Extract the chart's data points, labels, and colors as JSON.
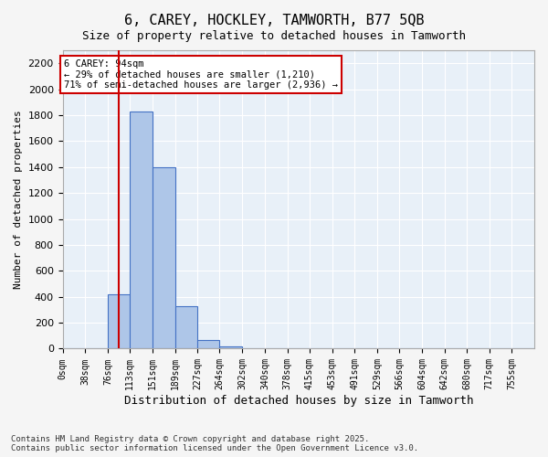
{
  "title": "6, CAREY, HOCKLEY, TAMWORTH, B77 5QB",
  "subtitle": "Size of property relative to detached houses in Tamworth",
  "xlabel": "Distribution of detached houses by size in Tamworth",
  "ylabel": "Number of detached properties",
  "bins": [
    "0sqm",
    "38sqm",
    "76sqm",
    "113sqm",
    "151sqm",
    "189sqm",
    "227sqm",
    "264sqm",
    "302sqm",
    "340sqm",
    "378sqm",
    "415sqm",
    "453sqm",
    "491sqm",
    "529sqm",
    "566sqm",
    "604sqm",
    "642sqm",
    "680sqm",
    "717sqm",
    "755sqm"
  ],
  "bar_values": [
    0,
    0,
    420,
    1830,
    1400,
    330,
    70,
    15,
    0,
    0,
    0,
    0,
    0,
    0,
    0,
    0,
    0,
    0,
    0,
    0,
    0
  ],
  "bar_color": "#aec6e8",
  "bar_edge_color": "#4472c4",
  "bar_edge_width": 0.8,
  "vline_x": 94,
  "vline_color": "#cc0000",
  "annotation_text": "6 CAREY: 94sqm\n← 29% of detached houses are smaller (1,210)\n71% of semi-detached houses are larger (2,936) →",
  "annotation_box_color": "#cc0000",
  "ylim": [
    0,
    2300
  ],
  "yticks": [
    0,
    200,
    400,
    600,
    800,
    1000,
    1200,
    1400,
    1600,
    1800,
    2000,
    2200
  ],
  "background_color": "#e8f0f8",
  "grid_color": "#ffffff",
  "footer": "Contains HM Land Registry data © Crown copyright and database right 2025.\nContains public sector information licensed under the Open Government Licence v3.0.",
  "bin_edges": [
    0,
    38,
    76,
    113,
    151,
    189,
    227,
    264,
    302,
    340,
    378,
    415,
    453,
    491,
    529,
    566,
    604,
    642,
    680,
    717,
    755,
    793
  ]
}
